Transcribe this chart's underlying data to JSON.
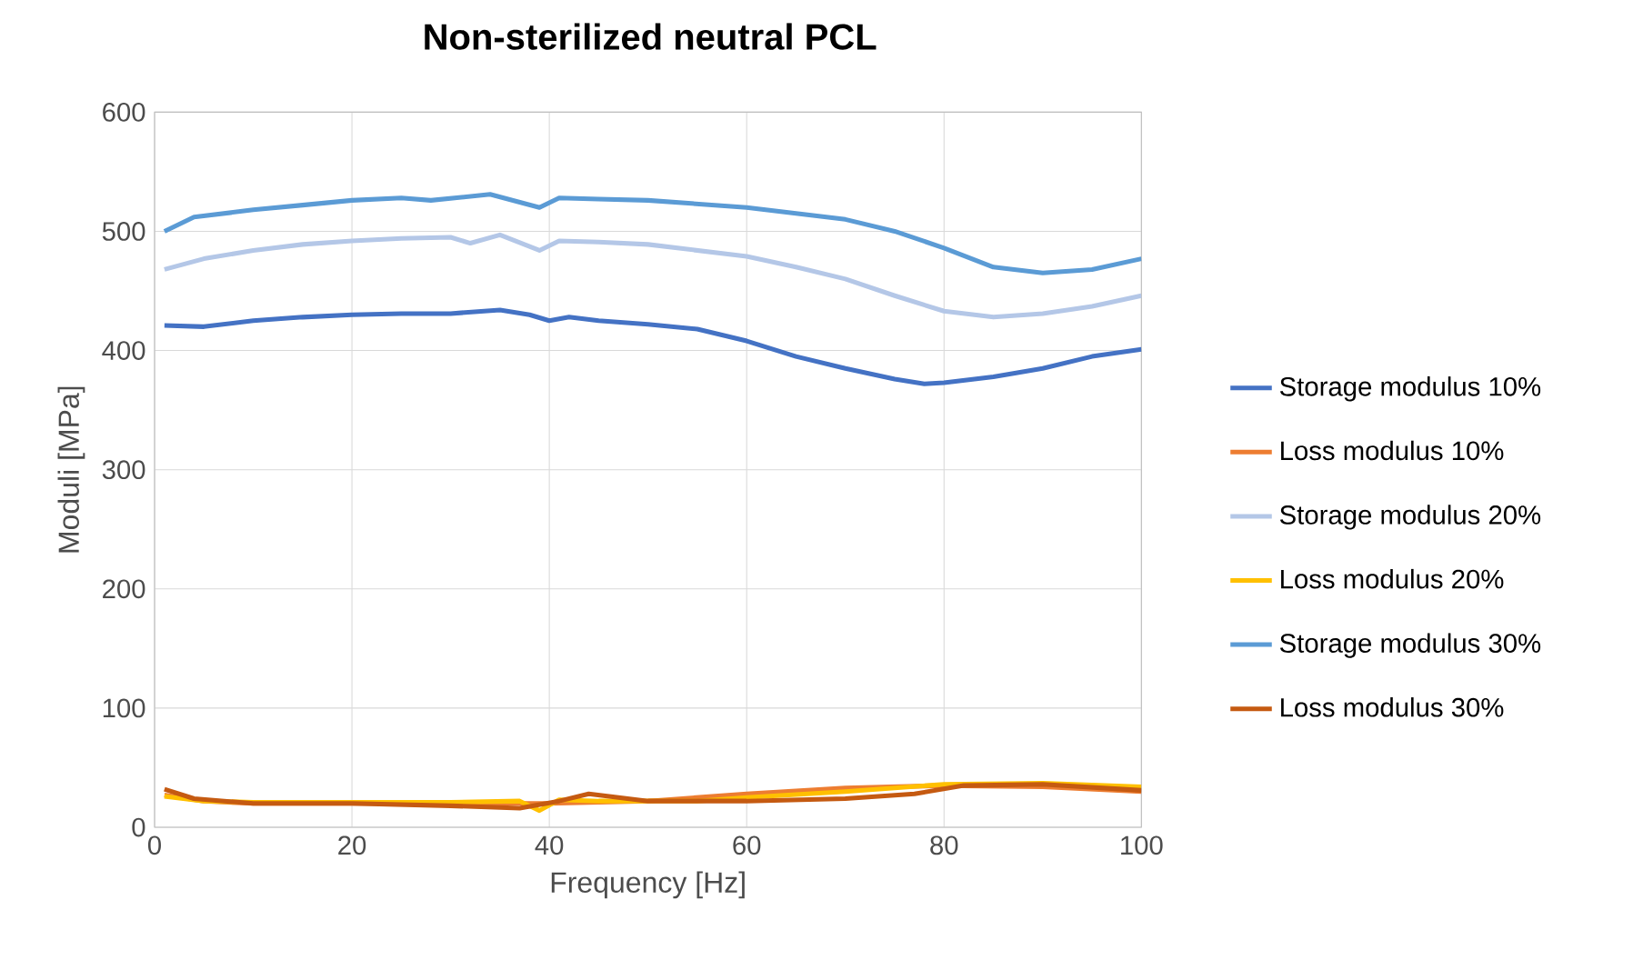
{
  "chart_data": {
    "type": "line",
    "title": "Non-sterilized neutral PCL",
    "xlabel": "Frequency [Hz]",
    "ylabel": "Moduli [MPa]",
    "xlim": [
      0,
      100
    ],
    "ylim": [
      0,
      600
    ],
    "xticks": [
      0,
      20,
      40,
      60,
      80,
      100
    ],
    "yticks": [
      0,
      100,
      200,
      300,
      400,
      500,
      600
    ],
    "grid": true,
    "legend": "right",
    "marker": "none",
    "line_style": "solid",
    "series": [
      {
        "name": "Storage modulus 10%",
        "color": "#4472c4",
        "x": [
          1,
          5,
          10,
          15,
          20,
          25,
          30,
          35,
          38,
          40,
          42,
          45,
          50,
          55,
          60,
          65,
          70,
          75,
          78,
          80,
          85,
          90,
          95,
          100
        ],
        "values": [
          421,
          420,
          425,
          428,
          430,
          431,
          431,
          434,
          430,
          425,
          428,
          425,
          422,
          418,
          408,
          395,
          385,
          376,
          372,
          373,
          378,
          385,
          395,
          401
        ]
      },
      {
        "name": "Loss modulus 10%",
        "color": "#ed7d31",
        "x": [
          1,
          5,
          10,
          20,
          30,
          40,
          50,
          60,
          70,
          80,
          90,
          100
        ],
        "values": [
          27,
          22,
          20,
          20,
          20,
          20,
          22,
          28,
          33,
          35,
          34,
          30
        ]
      },
      {
        "name": "Storage modulus 20%",
        "color": "#b4c7e7",
        "x": [
          1,
          5,
          10,
          15,
          20,
          25,
          30,
          32,
          35,
          39,
          41,
          45,
          50,
          55,
          60,
          65,
          70,
          75,
          80,
          85,
          90,
          95,
          100
        ],
        "values": [
          468,
          477,
          484,
          489,
          492,
          494,
          495,
          490,
          497,
          484,
          492,
          491,
          489,
          484,
          479,
          470,
          460,
          446,
          433,
          428,
          431,
          437,
          446
        ]
      },
      {
        "name": "Loss modulus 20%",
        "color": "#ffc000",
        "x": [
          1,
          5,
          10,
          20,
          30,
          37,
          39,
          41,
          45,
          55,
          60,
          70,
          80,
          90,
          100
        ],
        "values": [
          26,
          22,
          21,
          21,
          21,
          22,
          14,
          23,
          22,
          22,
          25,
          30,
          36,
          37,
          34
        ]
      },
      {
        "name": "Storage modulus 30%",
        "color": "#5b9bd5",
        "x": [
          1,
          4,
          10,
          15,
          20,
          25,
          28,
          34,
          39,
          41,
          45,
          50,
          55,
          60,
          65,
          70,
          75,
          80,
          85,
          90,
          95,
          100
        ],
        "values": [
          500,
          512,
          518,
          522,
          526,
          528,
          526,
          531,
          520,
          528,
          527,
          526,
          523,
          520,
          515,
          510,
          500,
          486,
          470,
          465,
          468,
          477
        ]
      },
      {
        "name": "Loss modulus 30%",
        "color": "#c55a11",
        "x": [
          1,
          4,
          10,
          20,
          30,
          37,
          41,
          44,
          50,
          60,
          70,
          77,
          82,
          90,
          100
        ],
        "values": [
          32,
          24,
          20,
          20,
          18,
          16,
          22,
          28,
          22,
          22,
          24,
          28,
          35,
          36,
          31
        ]
      }
    ]
  }
}
